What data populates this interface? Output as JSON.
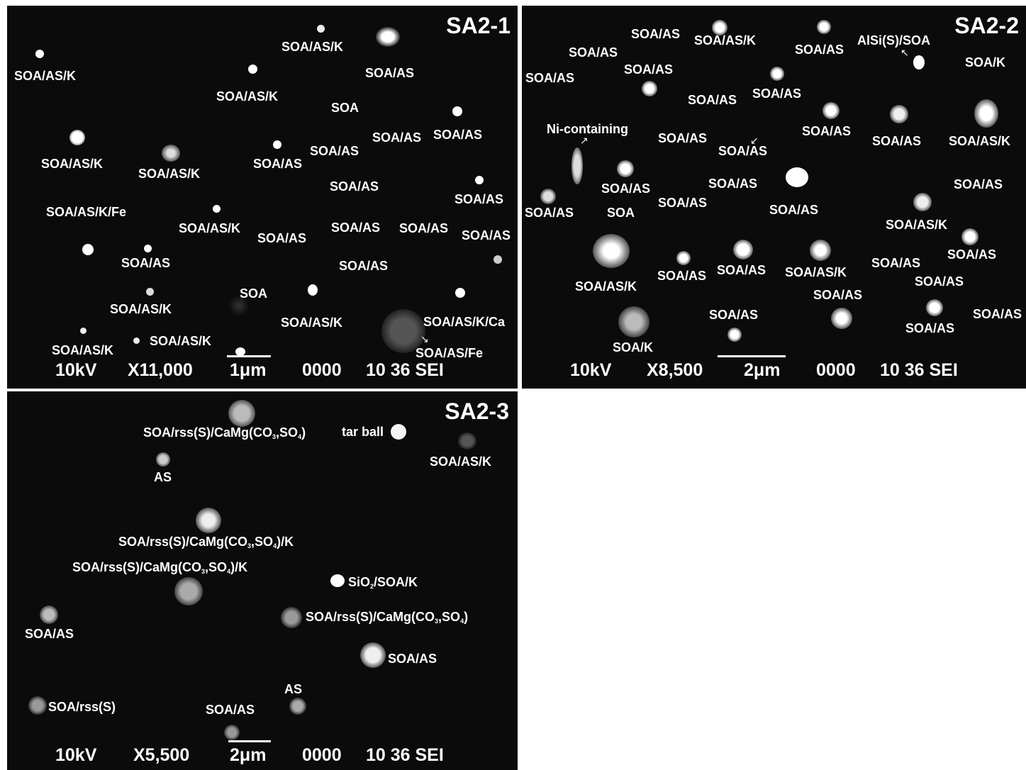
{
  "panels": [
    {
      "title": "SA2-1",
      "labels": [
        "SOA/AS/K",
        "SOA/AS/K",
        "SOA/AS",
        "SOA/AS/K",
        "SOA",
        "SOA/AS/K",
        "SOA/AS/K",
        "SOA/AS",
        "SOA/AS",
        "SOA/AS",
        "SOA/AS",
        "SOA/AS",
        "SOA/AS/K/Fe",
        "SOA/AS/K",
        "SOA/AS",
        "SOA/AS",
        "SOA/AS",
        "SOA/AS",
        "SOA/AS",
        "SOA/AS",
        "SOA",
        "SOA/AS/K",
        "SOA/AS/K",
        "SOA/AS/K/Ca",
        "SOA/AS/K",
        "SOA/AS/K",
        "SOA/AS/Fe",
        "SOA/AS/K"
      ],
      "databar": {
        "kv": "10kV",
        "mag": "X11,000",
        "scale": "1μm",
        "id": "0000",
        "code": "10 36 SEI"
      }
    },
    {
      "title": "SA2-2",
      "labels": [
        "SOA/AS",
        "SOA/AS/K",
        "SOA/AS",
        "AlSi(S)/SOA",
        "SOA/AS",
        "SOA/AS",
        "SOA/K",
        "SOA/AS",
        "SOA/AS",
        "SOA/AS",
        "Ni-containing",
        "SOA/AS",
        "SOA/AS",
        "SOA/AS",
        "SOA/AS",
        "SOA/AS/K",
        "SOA/AS",
        "SOA/AS",
        "SOA/AS",
        "SOA/AS",
        "SOA",
        "SOA/AS",
        "SOA/AS/K",
        "SOA/AS",
        "SOA/AS/K",
        "SOA/AS",
        "SOA/AS",
        "SOA/AS/K",
        "SOA/AS",
        "SOA/AS",
        "SOA/AS",
        "SOA/AS",
        "SOA/AS",
        "SOA/AS",
        "SOA/K"
      ],
      "databar": {
        "kv": "10kV",
        "mag": "X8,500",
        "scale": "2μm",
        "id": "0000",
        "code": "10 36 SEI"
      }
    },
    {
      "title": "SA2-3",
      "labels": [
        "SOA/rss(S)/CaMg(CO",
        "3",
        ",SO",
        "4",
        ")",
        "tar ball",
        "AS",
        "SOA/AS/K",
        "SOA/rss(S)/CaMg(CO",
        "3",
        ",SO",
        "4",
        ")/K",
        "SOA/rss(S)/CaMg(CO",
        "3",
        ",SO",
        "4",
        ")/K",
        "SiO",
        "2",
        "/SOA/K",
        "SOA/AS",
        "SOA/rss(S)/CaMg(CO",
        "3",
        ",SO",
        "4",
        ")",
        "SOA/AS",
        "AS",
        "SOA/rss(S)",
        "SOA/AS"
      ],
      "databar": {
        "kv": "10kV",
        "mag": "X5,500",
        "scale": "2μm",
        "id": "0000",
        "code": "10 36 SEI"
      }
    }
  ]
}
